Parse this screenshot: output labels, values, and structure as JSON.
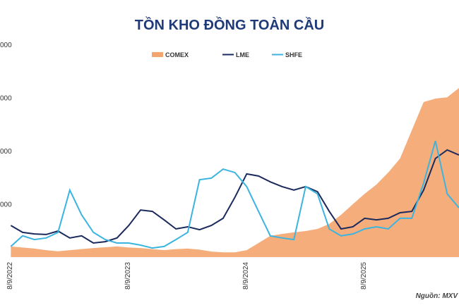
{
  "chart_data": {
    "type": "area-line",
    "title": "TỒN KHO ĐỒNG TOÀN CẦU",
    "source": "Nguồn: MXV",
    "x": [
      2022.7,
      2022.8,
      2022.9,
      2023.0,
      2023.1,
      2023.2,
      2023.3,
      2023.4,
      2023.5,
      2023.6,
      2023.7,
      2023.8,
      2023.9,
      2024.0,
      2024.1,
      2024.2,
      2024.3,
      2024.4,
      2024.5,
      2024.6,
      2024.7,
      2024.8,
      2024.9,
      2025.0,
      2025.1,
      2025.2,
      2025.3,
      2025.4,
      2025.5,
      2025.6,
      2025.7,
      2025.8,
      2025.9,
      2026.0,
      2026.1,
      2026.2,
      2026.3,
      2026.4,
      2026.5
    ],
    "series": [
      {
        "name": "COMEX",
        "kind": "area",
        "color": "#f4a46e",
        "values": [
          40000,
          36000,
          32000,
          26000,
          22000,
          26000,
          30000,
          34000,
          37000,
          40000,
          36000,
          34000,
          30000,
          26000,
          30000,
          32000,
          28000,
          21000,
          18000,
          18000,
          26000,
          53000,
          80000,
          87000,
          93000,
          98000,
          106000,
          125000,
          159000,
          199000,
          238000,
          273000,
          318000,
          371000,
          477000,
          583000,
          596000,
          601000,
          636000
        ]
      },
      {
        "name": "LME",
        "kind": "line",
        "color": "#1b2a5c",
        "values": [
          119000,
          93000,
          87000,
          85000,
          98000,
          72000,
          80000,
          53000,
          58000,
          72000,
          119000,
          177000,
          172000,
          140000,
          106000,
          114000,
          103000,
          119000,
          146000,
          225000,
          313000,
          305000,
          283000,
          265000,
          252000,
          265000,
          246000,
          172000,
          106000,
          114000,
          146000,
          140000,
          146000,
          167000,
          172000,
          252000,
          371000,
          403000,
          384000
        ]
      },
      {
        "name": "SHFE",
        "kind": "line",
        "color": "#3bb4e0",
        "values": [
          40000,
          80000,
          66000,
          72000,
          93000,
          252000,
          159000,
          93000,
          66000,
          53000,
          53000,
          45000,
          34000,
          40000,
          66000,
          93000,
          291000,
          297000,
          331000,
          318000,
          265000,
          172000,
          80000,
          72000,
          66000,
          265000,
          238000,
          106000,
          80000,
          87000,
          106000,
          114000,
          106000,
          146000,
          146000,
          278000,
          437000,
          238000,
          185000
        ]
      }
    ],
    "xlim": [
      2022.68,
      2026.5
    ],
    "xticks": [
      {
        "value": 2022.685,
        "label": "8/9/2022"
      },
      {
        "value": 2023.685,
        "label": "8/9/2023"
      },
      {
        "value": 2024.685,
        "label": "8/9/2024"
      },
      {
        "value": 2025.685,
        "label": "8/9/2025"
      }
    ],
    "ylim": [
      0,
      800000
    ],
    "yticks": [
      {
        "value": 200000,
        "label": "000"
      },
      {
        "value": 400000,
        "label": "000"
      },
      {
        "value": 600000,
        "label": "000"
      },
      {
        "value": 800000,
        "label": "000"
      }
    ],
    "grid": false
  }
}
